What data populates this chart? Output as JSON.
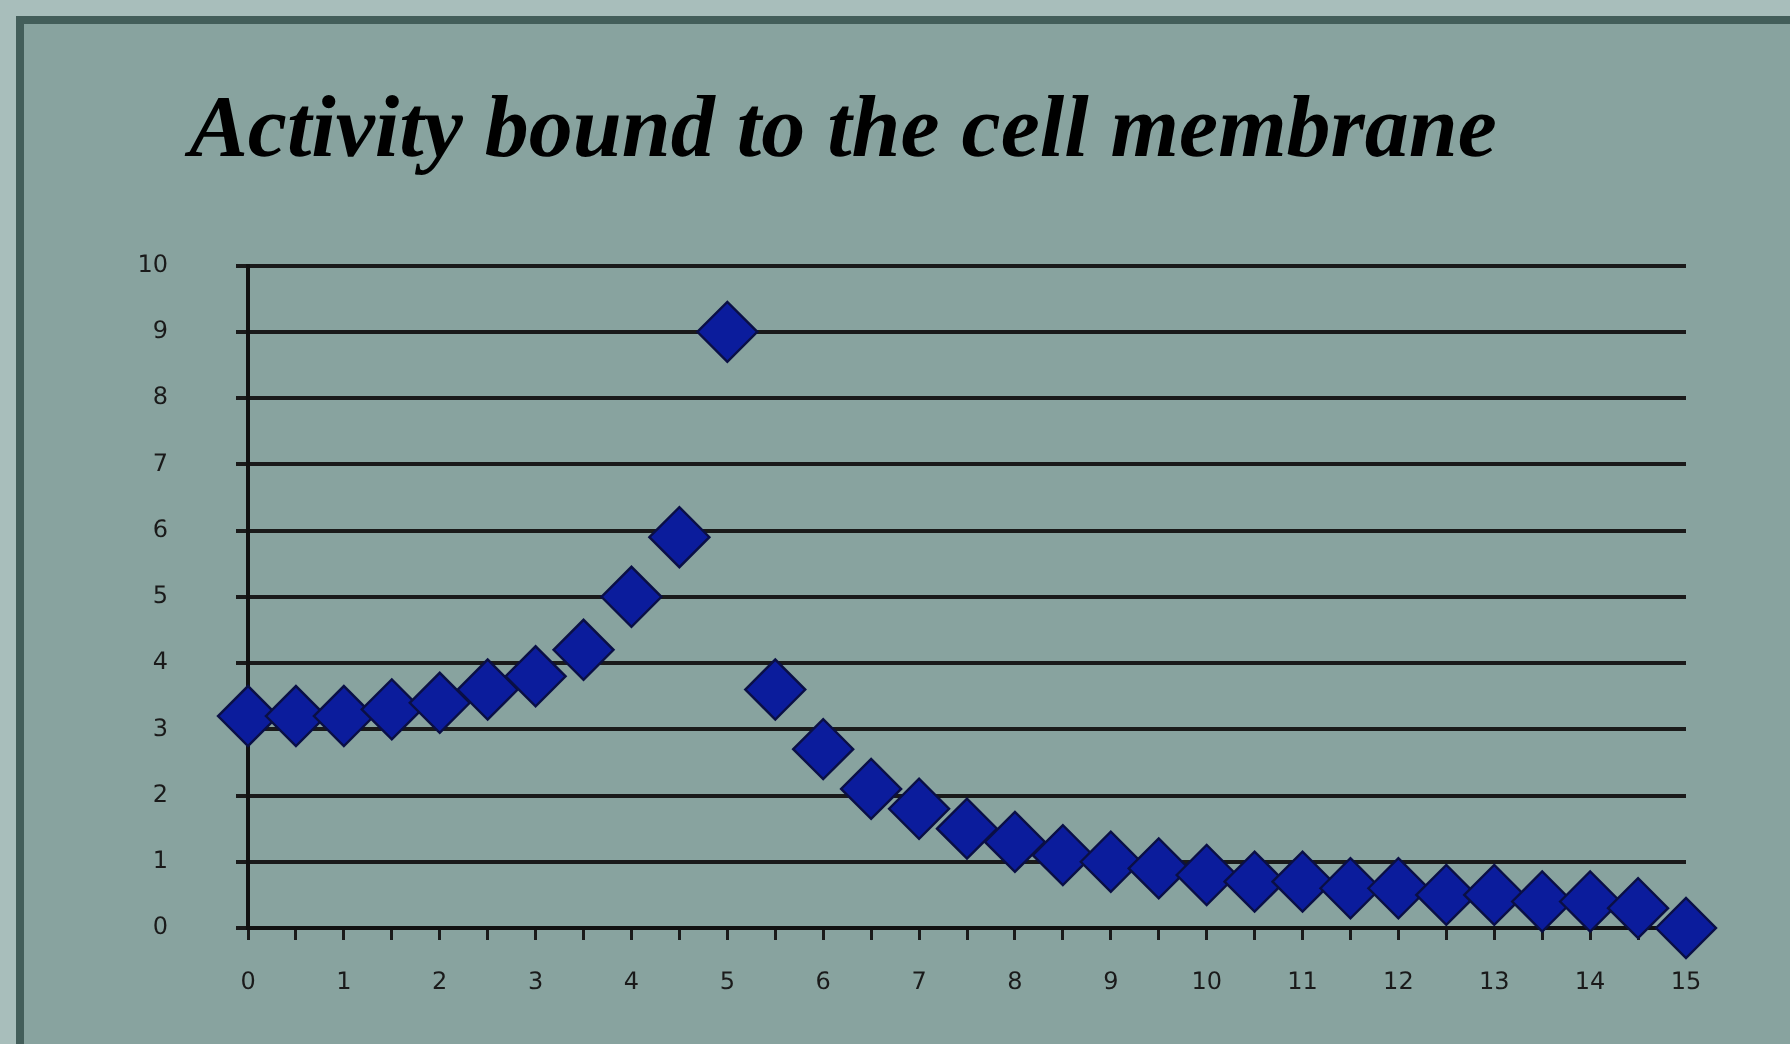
{
  "chart_data": {
    "type": "scatter",
    "title": "Activity bound to the cell membrane",
    "x": [
      0,
      0.5,
      1,
      1.5,
      2,
      2.5,
      3,
      3.5,
      4,
      4.5,
      5,
      5.5,
      6,
      6.5,
      7,
      7.5,
      8,
      8.5,
      9,
      9.5,
      10,
      10.5,
      11,
      11.5,
      12,
      12.5,
      13,
      13.5,
      14,
      14.5,
      15
    ],
    "series": [
      {
        "color": "#0b1c9c",
        "values": [
          3.2,
          3.2,
          3.2,
          3.3,
          3.4,
          3.6,
          3.8,
          4.2,
          5.0,
          5.9,
          9.0,
          3.6,
          2.7,
          2.1,
          1.8,
          1.5,
          1.3,
          1.1,
          1.0,
          0.9,
          0.8,
          0.7,
          0.7,
          0.6,
          0.6,
          0.5,
          0.5,
          0.4,
          0.4,
          0.3,
          0.0
        ]
      }
    ],
    "xlim": [
      0,
      15
    ],
    "ylim": [
      0,
      10
    ],
    "xticks": [
      0,
      {
        "value": 0.5,
        "label": null
      },
      1,
      {
        "value": 1.5,
        "label": null
      },
      2,
      {
        "value": 2.5,
        "label": null
      },
      3,
      {
        "value": 3.5,
        "label": null
      },
      4,
      {
        "value": 4.5,
        "label": null
      },
      5,
      {
        "value": 5.5,
        "label": null
      },
      6,
      {
        "value": 6.5,
        "label": null
      },
      7,
      {
        "value": 7.5,
        "label": null
      },
      8,
      {
        "value": 8.5,
        "label": null
      },
      9,
      {
        "value": 9.5,
        "label": null
      },
      10,
      {
        "value": 10.5,
        "label": null
      },
      11,
      {
        "value": 11.5,
        "label": null
      },
      12,
      {
        "value": 12.5,
        "label": null
      },
      13,
      {
        "value": 13.5,
        "label": null
      },
      14,
      {
        "value": 14.5,
        "label": null
      },
      15
    ],
    "yticks": [
      0,
      1,
      2,
      3,
      4,
      5,
      6,
      7,
      8,
      9,
      10
    ],
    "grid": "y",
    "marker": "diamond"
  }
}
